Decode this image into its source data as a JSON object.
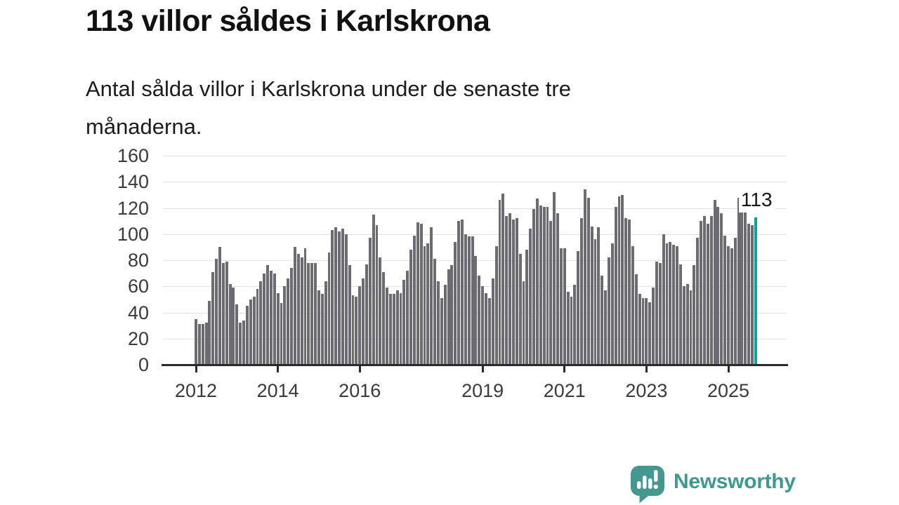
{
  "header": {
    "title": "113 villor såldes i Karlskrona",
    "subtitle_lines": [
      "Antal sålda villor i Karlskrona under de senaste tre",
      "månaderna."
    ]
  },
  "chart_data": {
    "type": "bar",
    "title": "113 villor såldes i Karlskrona",
    "subtitle": "Antal sålda villor i Karlskrona under de senaste tre månaderna.",
    "frequency": "monthly",
    "start": "2012-01",
    "end": "2025-09",
    "values": [
      35,
      31,
      31,
      32,
      49,
      71,
      81,
      90,
      78,
      79,
      62,
      59,
      46,
      32,
      34,
      45,
      50,
      52,
      58,
      64,
      70,
      76,
      72,
      70,
      55,
      47,
      60,
      66,
      74,
      90,
      85,
      82,
      89,
      78,
      78,
      78,
      57,
      54,
      64,
      86,
      103,
      105,
      102,
      104,
      100,
      76,
      53,
      52,
      60,
      66,
      77,
      97,
      115,
      107,
      82,
      71,
      59,
      54,
      54,
      57,
      55,
      65,
      72,
      88,
      99,
      109,
      108,
      91,
      93,
      105,
      81,
      64,
      51,
      61,
      73,
      76,
      94,
      110,
      111,
      100,
      98,
      98,
      83,
      68,
      60,
      55,
      51,
      66,
      91,
      126,
      131,
      114,
      116,
      111,
      112,
      85,
      64,
      88,
      104,
      119,
      127,
      122,
      121,
      121,
      110,
      132,
      116,
      89,
      89,
      56,
      52,
      61,
      87,
      112,
      134,
      128,
      106,
      96,
      105,
      68,
      57,
      82,
      93,
      121,
      129,
      130,
      112,
      111,
      91,
      69,
      54,
      51,
      51,
      48,
      59,
      79,
      78,
      100,
      93,
      94,
      92,
      91,
      77,
      60,
      62,
      57,
      76,
      97,
      110,
      114,
      108,
      114,
      126,
      121,
      116,
      99,
      91,
      89,
      97,
      128,
      120,
      118,
      108,
      107,
      113
    ],
    "highlight": {
      "index": 164,
      "value": 113,
      "label": "113",
      "color": "#0ba3a0"
    },
    "bar_color": "#6b6b71",
    "grid_color": "#e0e0e0",
    "axis_color": "#2b2b2b",
    "ylim": [
      0,
      160
    ],
    "y_ticks": [
      0,
      20,
      40,
      60,
      80,
      100,
      120,
      140,
      160
    ],
    "x_ticks": [
      {
        "label": "2012",
        "month_index": 0
      },
      {
        "label": "2014",
        "month_index": 24
      },
      {
        "label": "2016",
        "month_index": 48
      },
      {
        "label": "2019",
        "month_index": 84
      },
      {
        "label": "2021",
        "month_index": 108
      },
      {
        "label": "2023",
        "month_index": 132
      },
      {
        "label": "2025",
        "month_index": 156
      }
    ],
    "xlabel": "",
    "ylabel": "",
    "grid": true,
    "legend": false
  },
  "footer": {
    "brand": "Newsworthy",
    "brand_color": "#3e9a8f",
    "logo_color": "#45988f"
  }
}
